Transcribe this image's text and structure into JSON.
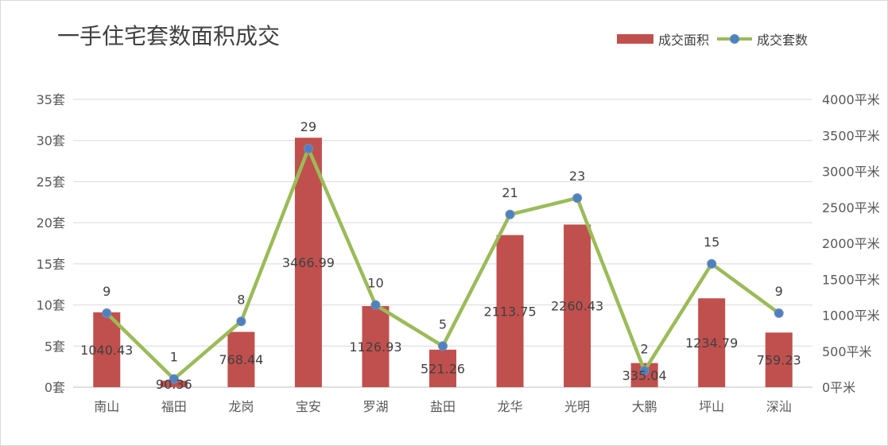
{
  "chart_data": {
    "type": "bar",
    "title": "一手住宅套数面积成交",
    "categories": [
      "南山",
      "福田",
      "龙岗",
      "宝安",
      "罗湖",
      "盐田",
      "龙华",
      "光明",
      "大鹏",
      "坪山",
      "深汕"
    ],
    "series": [
      {
        "name": "成交面积",
        "type": "bar",
        "axis": "right",
        "color": "#c0504d",
        "values": [
          1040.43,
          90.36,
          768.44,
          3466.99,
          1126.93,
          521.26,
          2113.75,
          2260.43,
          335.04,
          1234.79,
          759.23
        ]
      },
      {
        "name": "成交套数",
        "type": "line",
        "axis": "left",
        "color": "#9bbb59",
        "marker_color": "#4f81bd",
        "values": [
          9,
          1,
          8,
          29,
          10,
          5,
          21,
          23,
          2,
          15,
          9
        ]
      }
    ],
    "y_left": {
      "range": [
        0,
        35
      ],
      "ticks": [
        "0套",
        "5套",
        "10套",
        "15套",
        "20套",
        "25套",
        "30套",
        "35套"
      ]
    },
    "y_right": {
      "range": [
        0,
        4000
      ],
      "ticks": [
        "0平米",
        "500平米",
        "1000平米",
        "1500平米",
        "2000平米",
        "2500平米",
        "3000平米",
        "3500平米",
        "4000平米"
      ]
    },
    "bar_labels": [
      "1040.43",
      "90.36",
      "768.44",
      "3466.99",
      "1126.93",
      "521.26",
      "2113.75",
      "2260.43",
      "335.04",
      "1234.79",
      "759.23"
    ],
    "line_labels": [
      "9",
      "1",
      "8",
      "29",
      "10",
      "5",
      "21",
      "23",
      "2",
      "15",
      "9"
    ],
    "grid": true,
    "legend": "top-right"
  }
}
